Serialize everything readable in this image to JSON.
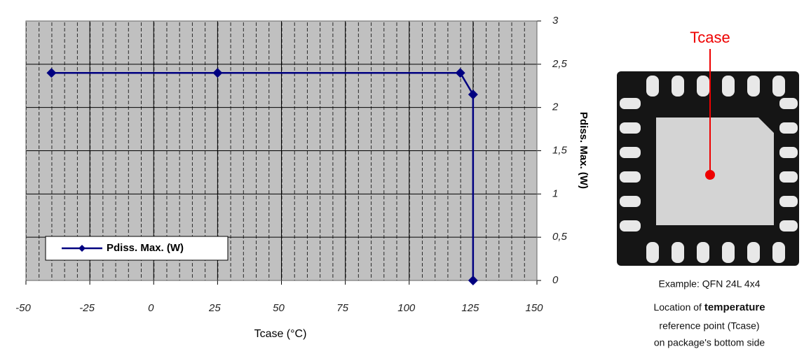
{
  "chart_data": {
    "type": "line",
    "x_label": "Tcase (°C)",
    "y_label": "Pdiss. Max. (W)",
    "x": [
      -40,
      25,
      120,
      125,
      125
    ],
    "series": [
      {
        "name": "Pdiss. Max. (W)",
        "color": "#000080",
        "values": [
          2.4,
          2.4,
          2.4,
          2.15,
          0
        ]
      }
    ],
    "xlim": [
      -50,
      150
    ],
    "xticks": [
      -50,
      -25,
      0,
      25,
      50,
      75,
      100,
      125,
      150
    ],
    "ylim": [
      0,
      3
    ],
    "yticks": [
      0,
      {
        "value": 0.5,
        "label": "0,5"
      },
      1,
      {
        "value": 1.5,
        "label": "1,5"
      },
      2,
      {
        "value": 2.5,
        "label": "2,5"
      },
      3
    ],
    "grid": true,
    "legend": "lower left"
  },
  "figure": {
    "label": "Tcase",
    "caption": [
      "Example: QFN 24L 4x4",
      [
        "Location of",
        "temperature"
      ],
      "reference point (Tcase)",
      "on package's bottom side"
    ]
  }
}
